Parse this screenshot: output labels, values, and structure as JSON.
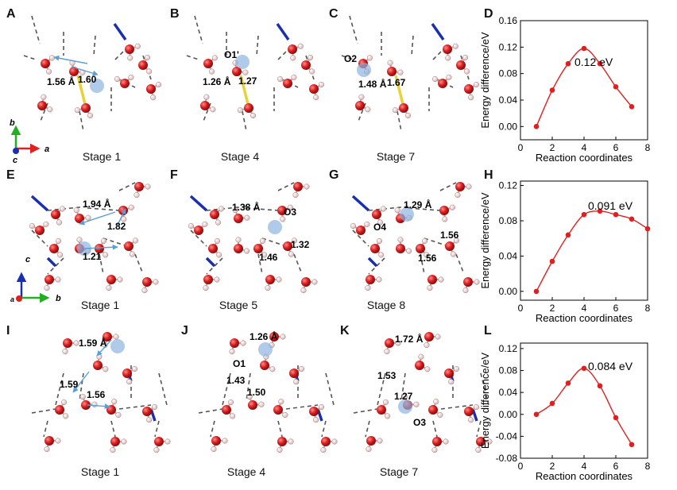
{
  "panels": {
    "A": "A",
    "B": "B",
    "C": "C",
    "D": "D",
    "E": "E",
    "F": "F",
    "G": "G",
    "H": "H",
    "I": "I",
    "J": "J",
    "K": "K",
    "L": "L"
  },
  "stages": {
    "A": "Stage 1",
    "B": "Stage 4",
    "C": "Stage 7",
    "E": "Stage 1",
    "F": "Stage 5",
    "G": "Stage 8",
    "I": "Stage 1",
    "J": "Stage 4",
    "K": "Stage 7"
  },
  "labels": {
    "A": [
      "1.56 Å",
      "1.60"
    ],
    "B": [
      "O1'",
      "1.26 Å",
      "1.27"
    ],
    "C": [
      "O2",
      "1.48 Å",
      "1.67"
    ],
    "E": [
      "1.94 Å",
      "1.82",
      "1.21"
    ],
    "F": [
      "1.38 Å",
      "O3",
      "1.32",
      "1.46"
    ],
    "G": [
      "1.29 Å",
      "O4",
      "1.56",
      "1.56"
    ],
    "I": [
      "1.59 Å",
      "1.59",
      "1.56"
    ],
    "J": [
      "1.26 Å",
      "O1",
      "1.43",
      "1.50"
    ],
    "K": [
      "1.72 Å",
      "1.53",
      "1.27",
      "O3"
    ]
  },
  "axes_top": {
    "a": "a",
    "b": "b",
    "c": "c"
  },
  "axes_mid": {
    "a": "a",
    "b": "b",
    "c": "c"
  },
  "colors": {
    "oxygen": "#d81e1e",
    "hydrogen": "#f4d2d2",
    "bond_hbond": "#555555",
    "arrow": "#5aa0d6",
    "highlight": "#8fb4e0",
    "yellow": "#e8d23a",
    "blue_bond": "#1a2fb0",
    "curve": "#e02020"
  },
  "chart_data": [
    {
      "type": "line",
      "title": "",
      "annotation": "0.12 eV",
      "xlabel": "Reaction coordinates",
      "ylabel": "Energy difference/eV",
      "xlim": [
        0,
        8
      ],
      "ylim": [
        -0.02,
        0.16
      ],
      "xticks": [
        0,
        2,
        4,
        6,
        8
      ],
      "yticks": [
        0.0,
        0.04,
        0.08,
        0.12,
        0.16
      ],
      "ytick_labels": [
        "0.00",
        "0.04",
        "0.08",
        "0.12",
        "0.16"
      ],
      "x": [
        1,
        2,
        3,
        4,
        5,
        6,
        7
      ],
      "y": [
        0.0,
        0.055,
        0.095,
        0.118,
        0.095,
        0.06,
        0.03
      ]
    },
    {
      "type": "line",
      "title": "",
      "annotation": "0.091 eV",
      "xlabel": "Reaction coordinates",
      "ylabel": "Energy difference/eV",
      "xlim": [
        0,
        8
      ],
      "ylim": [
        -0.01,
        0.125
      ],
      "xticks": [
        0,
        2,
        4,
        6,
        8
      ],
      "yticks": [
        0.0,
        0.04,
        0.08,
        0.12
      ],
      "ytick_labels": [
        "0.00",
        "0.04",
        "0.08",
        "0.12"
      ],
      "x": [
        1,
        2,
        3,
        4,
        5,
        6,
        7,
        8
      ],
      "y": [
        0.0,
        0.034,
        0.064,
        0.087,
        0.091,
        0.087,
        0.082,
        0.071
      ]
    },
    {
      "type": "line",
      "title": "",
      "annotation": "0.084 eV",
      "xlabel": "Reaction coordinates",
      "ylabel": "Energy difference/eV",
      "xlim": [
        0,
        8
      ],
      "ylim": [
        -0.08,
        0.13
      ],
      "xticks": [
        0,
        2,
        4,
        6,
        8
      ],
      "yticks": [
        -0.08,
        -0.04,
        0.0,
        0.04,
        0.08,
        0.12
      ],
      "ytick_labels": [
        "-0.08",
        "-0.04",
        "0.00",
        "0.04",
        "0.08",
        "0.12"
      ],
      "x": [
        1,
        2,
        3,
        4,
        5,
        6,
        7
      ],
      "y": [
        0.0,
        0.02,
        0.057,
        0.084,
        0.052,
        -0.006,
        -0.055
      ]
    }
  ]
}
